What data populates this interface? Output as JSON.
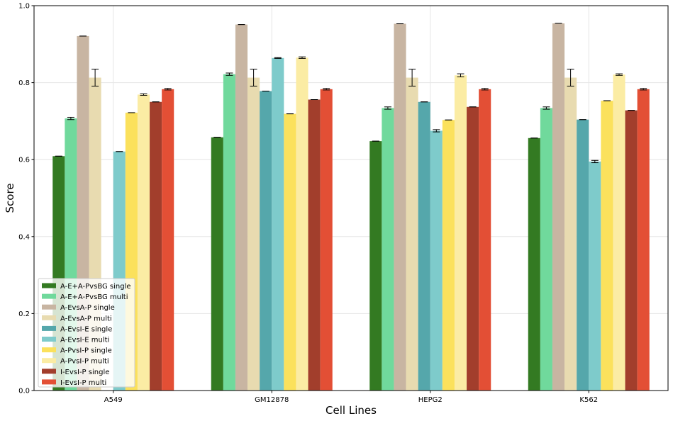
{
  "chart_data": {
    "type": "bar",
    "xlabel": "Cell Lines",
    "ylabel": "Score",
    "ylim": [
      0,
      1.0
    ],
    "yticks": [
      "0.0",
      "0.2",
      "0.4",
      "0.6",
      "0.8",
      "1.0"
    ],
    "grid": true,
    "legend_position": "bottom-left",
    "categories": [
      "A549",
      "GM12878",
      "HEPG2",
      "K562"
    ],
    "series": [
      {
        "name": "A-E+A-PvsBG single",
        "color": "#337a22",
        "values": [
          0.609,
          0.658,
          0.648,
          0.656
        ],
        "errors": [
          0,
          0,
          0,
          0
        ]
      },
      {
        "name": "A-E+A-PvsBG multi",
        "color": "#70d99c",
        "values": [
          0.707,
          0.822,
          0.734,
          0.734
        ],
        "errors": [
          0.003,
          0.003,
          0.003,
          0.003
        ]
      },
      {
        "name": "A-EvsA-P single",
        "color": "#c8b5a2",
        "values": [
          0.921,
          0.951,
          0.953,
          0.954
        ],
        "errors": [
          0,
          0,
          0,
          0
        ]
      },
      {
        "name": "A-EvsA-P multi",
        "color": "#e8dbb0",
        "values": [
          0.813,
          0.813,
          0.813,
          0.813
        ],
        "errors": [
          0.022,
          0.022,
          0.022,
          0.022
        ]
      },
      {
        "name": "A-EvsI-E single",
        "color": "#55a7ab",
        "values": [
          0,
          0.778,
          0.75,
          0.704
        ],
        "errors": [
          0,
          0,
          0,
          0
        ]
      },
      {
        "name": "A-EvsI-E multi",
        "color": "#7ecbcb",
        "values": [
          0.621,
          0.864,
          0.675,
          0.595
        ],
        "errors": [
          0,
          0.001,
          0.003,
          0.003
        ]
      },
      {
        "name": "A-PvsI-P single",
        "color": "#fbe15c",
        "values": [
          0.722,
          0.719,
          0.703,
          0.753
        ],
        "errors": [
          0,
          0,
          0,
          0
        ]
      },
      {
        "name": "A-PvsI-P multi",
        "color": "#fbeca4",
        "values": [
          0.769,
          0.865,
          0.819,
          0.821
        ],
        "errors": [
          0.002,
          0.002,
          0.004,
          0.002
        ]
      },
      {
        "name": "I-EvsI-P single",
        "color": "#a23e2c",
        "values": [
          0.75,
          0.756,
          0.737,
          0.728
        ],
        "errors": [
          0,
          0,
          0,
          0
        ]
      },
      {
        "name": "I-EvsI-P multi",
        "color": "#e34f35",
        "values": [
          0.783,
          0.783,
          0.783,
          0.783
        ],
        "errors": [
          0.002,
          0.002,
          0.002,
          0.002
        ]
      }
    ]
  }
}
